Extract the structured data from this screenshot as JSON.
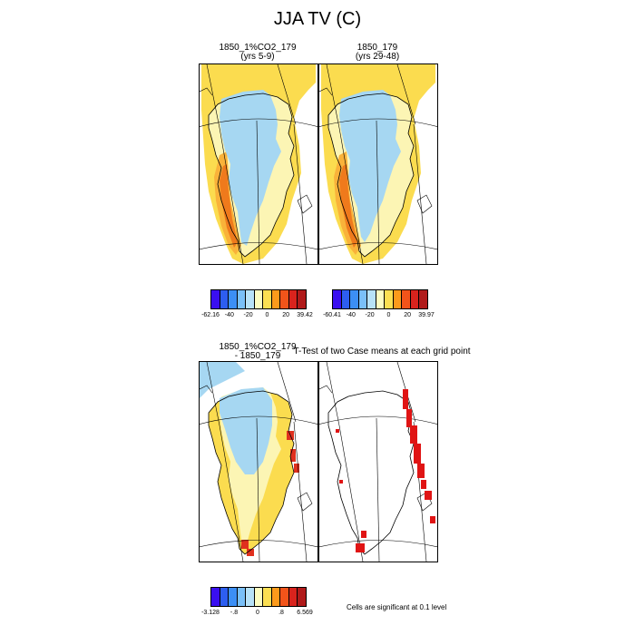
{
  "figure": {
    "title": "JJA TV (C)",
    "note": "Cells are significant at 0.1 level"
  },
  "panels": [
    {
      "id": "p1",
      "title_line1": "1850_1%CO2_179",
      "title_line2": "(yrs 5-9)"
    },
    {
      "id": "p2",
      "title_line1": "1850_179",
      "title_line2": "(yrs 29-48)"
    },
    {
      "id": "p3",
      "title_line1": "1850_1%CO2_179",
      "title_line2": "- 1850_179"
    },
    {
      "id": "p4",
      "title_line1": "T-Test of two Case means at each grid point",
      "title_line2": ""
    }
  ],
  "colorbars": [
    {
      "id": "cb1",
      "colors": [
        "#3a0ff0",
        "#2d5ef0",
        "#3c8ff5",
        "#7ac0f8",
        "#b8e2f8",
        "#fcfcc0",
        "#fbdf52",
        "#fc9a1b",
        "#f2541a",
        "#d9231d",
        "#b01a1a"
      ],
      "labels": [
        "-62.16",
        "-40",
        "-20",
        "0",
        "20",
        "39.42"
      ]
    },
    {
      "id": "cb2",
      "colors": [
        "#3a0ff0",
        "#2d5ef0",
        "#3c8ff5",
        "#7ac0f8",
        "#b8e2f8",
        "#fcfcc0",
        "#fbdf52",
        "#fc9a1b",
        "#f2541a",
        "#d9231d",
        "#b01a1a"
      ],
      "labels": [
        "-60.41",
        "-40",
        "-20",
        "0",
        "20",
        "39.97"
      ]
    },
    {
      "id": "cb3",
      "colors": [
        "#3a0ff0",
        "#2d5ef0",
        "#3c8ff5",
        "#7ac0f8",
        "#b8e2f8",
        "#fcfcc0",
        "#fbdf52",
        "#fc9a1b",
        "#f2541a",
        "#d9231d",
        "#b01a1a"
      ],
      "labels": [
        "-3.128",
        "-.8",
        "0",
        ".8",
        "6.569"
      ]
    }
  ],
  "map_colors": {
    "cold": "#a6d7f2",
    "neutral": "#fcf5b4",
    "warm": "#fbdc4f",
    "warm2": "#f9b23a",
    "hot": "#ef7a1c",
    "hottest": "#e0301e",
    "significant": "#e01414"
  }
}
